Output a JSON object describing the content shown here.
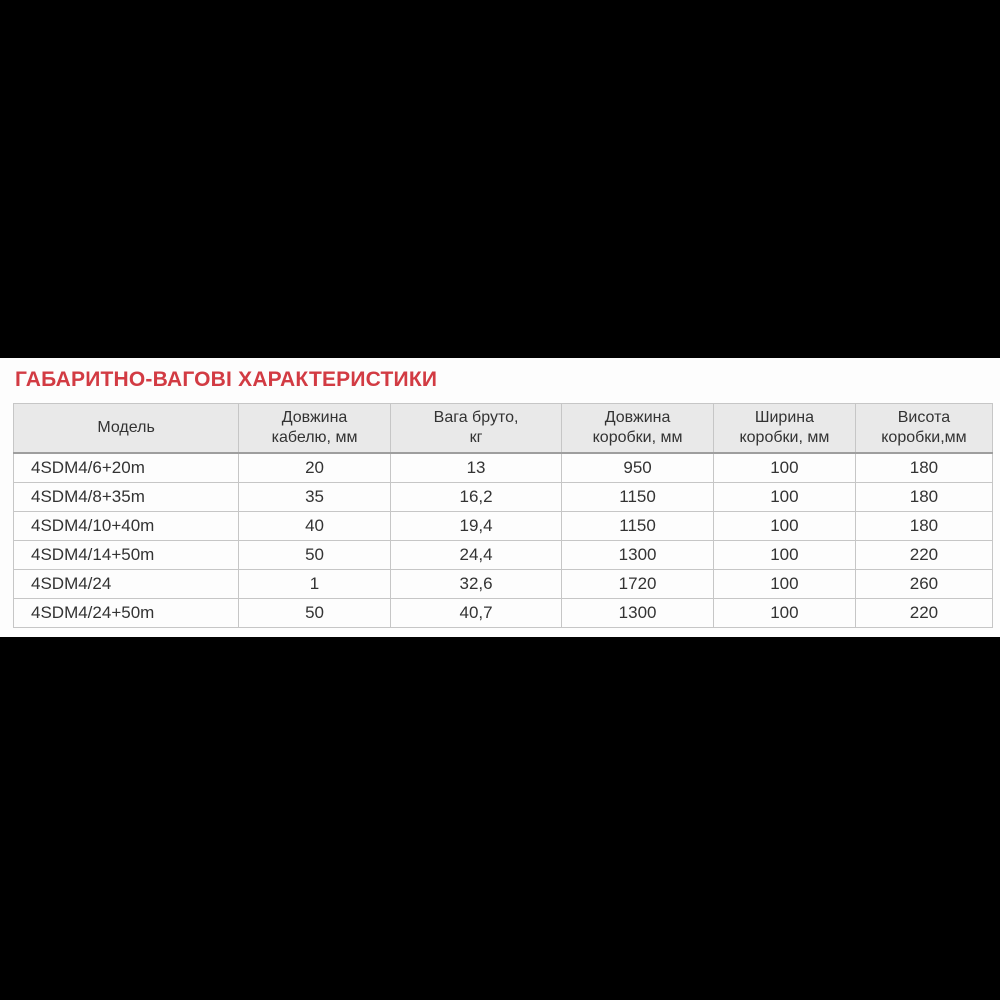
{
  "title": "ГАБАРИТНО-ВАГОВІ ХАРАКТЕРИСТИКИ",
  "colors": {
    "title_red": "#d23b43",
    "header_bg": "#e9e9e9",
    "border_gray": "#c6c6c6",
    "text": "#333333",
    "band_black": "#000000",
    "band_white": "#fdfdfd"
  },
  "table": {
    "headers": [
      {
        "label": "Модель"
      },
      {
        "label": "Довжина\nкабелю, мм"
      },
      {
        "label": "Вага бруто,\nкг"
      },
      {
        "label": "Довжина\nкоробки, мм"
      },
      {
        "label": "Ширина\nкоробки, мм"
      },
      {
        "label": "Висота\nкоробки,мм"
      }
    ],
    "rows": [
      {
        "model": "4SDM4/6+20m",
        "cable_length_mm": "20",
        "gross_weight_kg": "13",
        "box_length_mm": "950",
        "box_width_mm": "100",
        "box_height_mm": "180"
      },
      {
        "model": "4SDM4/8+35m",
        "cable_length_mm": "35",
        "gross_weight_kg": "16,2",
        "box_length_mm": "1150",
        "box_width_mm": "100",
        "box_height_mm": "180"
      },
      {
        "model": "4SDM4/10+40m",
        "cable_length_mm": "40",
        "gross_weight_kg": "19,4",
        "box_length_mm": "1150",
        "box_width_mm": "100",
        "box_height_mm": "180"
      },
      {
        "model": "4SDM4/14+50m",
        "cable_length_mm": "50",
        "gross_weight_kg": "24,4",
        "box_length_mm": "1300",
        "box_width_mm": "100",
        "box_height_mm": "220"
      },
      {
        "model": "4SDM4/24",
        "cable_length_mm": "1",
        "gross_weight_kg": "32,6",
        "box_length_mm": "1720",
        "box_width_mm": "100",
        "box_height_mm": "260"
      },
      {
        "model": "4SDM4/24+50m",
        "cable_length_mm": "50",
        "gross_weight_kg": "40,7",
        "box_length_mm": "1300",
        "box_width_mm": "100",
        "box_height_mm": "220"
      }
    ]
  }
}
